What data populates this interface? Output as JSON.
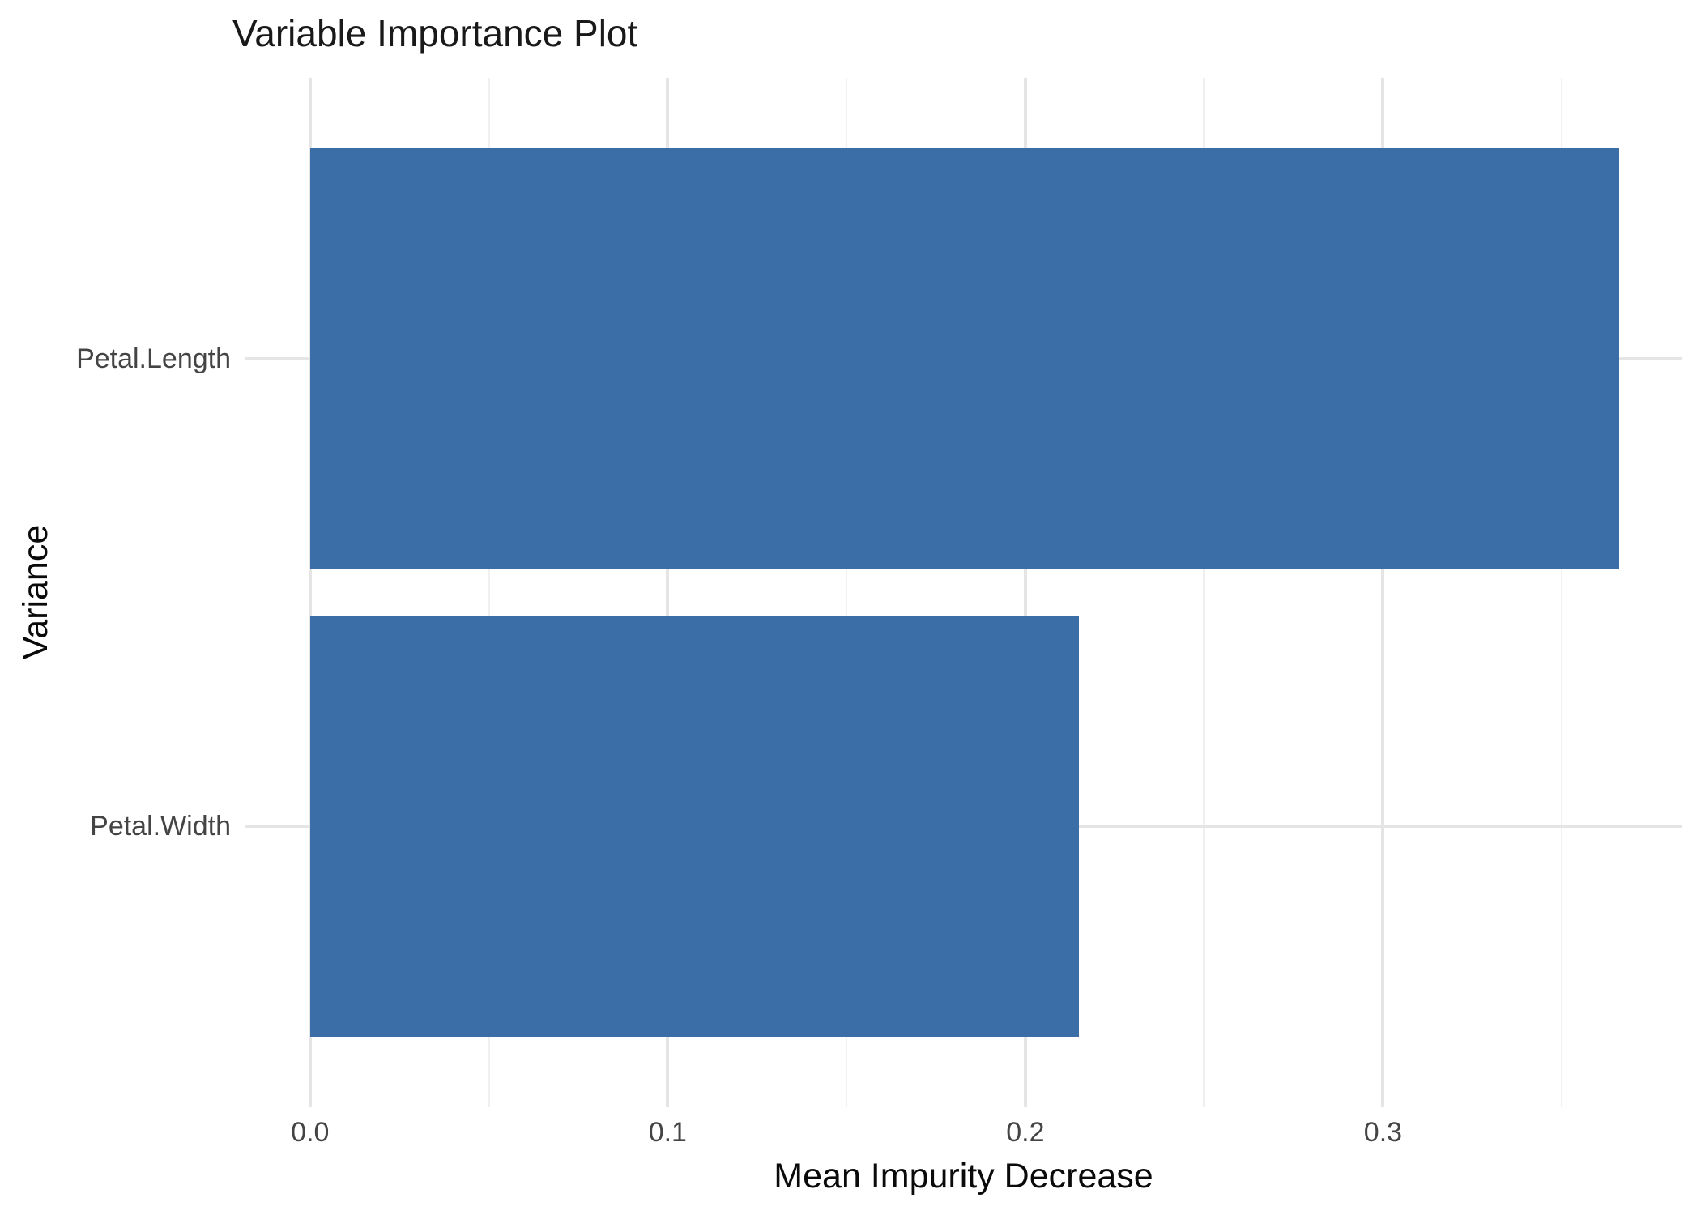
{
  "chart_data": {
    "type": "bar",
    "orientation": "horizontal",
    "title": "Variable Importance Plot",
    "xlabel": "Mean Impurity Decrease",
    "ylabel": "Variance",
    "categories": [
      "Petal.Length",
      "Petal.Width"
    ],
    "values": [
      0.366,
      0.215
    ],
    "xlim": [
      -0.0183,
      0.3837
    ],
    "x_major_ticks": [
      0.0,
      0.1,
      0.2,
      0.3
    ],
    "x_tick_labels": [
      "0.0",
      "0.1",
      "0.2",
      "0.3"
    ],
    "x_minor_ticks": [
      0.05,
      0.15,
      0.25,
      0.35
    ],
    "grid": true,
    "legend": false,
    "colors": {
      "bar": "#3B6DA6",
      "grid_major": "#E5E5E5",
      "grid_minor": "#F0F0F0",
      "tick_label": "#444444",
      "title": "#191919",
      "axis_title": "#0a0a0a",
      "background": "#FFFFFF"
    }
  }
}
